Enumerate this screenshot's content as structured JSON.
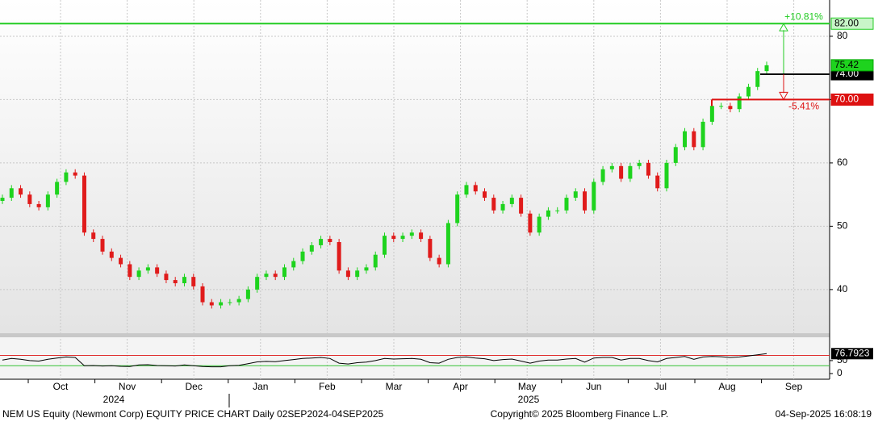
{
  "chart_data": {
    "type": "candlestick",
    "open": [
      54,
      54.5,
      56,
      55,
      53.5,
      53,
      55,
      57,
      58.5,
      58,
      49,
      48,
      46,
      45,
      44,
      42,
      43,
      43.5,
      42.5,
      41.5,
      41,
      42,
      40.5,
      38,
      37.5,
      38,
      38,
      38.5,
      40,
      42,
      42.5,
      42,
      43.5,
      44.5,
      46,
      47,
      48,
      47.5,
      43,
      42,
      43,
      43.5,
      45.5,
      48.5,
      48,
      48.5,
      49,
      48,
      45,
      44,
      50.5,
      55,
      56.5,
      55.5,
      54.5,
      52.5,
      53.5,
      54.5,
      52,
      49,
      51.5,
      52.5,
      52.5,
      54.5,
      55.5,
      52.5,
      57,
      59,
      59.5,
      57.5,
      59.5,
      60,
      58,
      56,
      60,
      62.5,
      65,
      62.5,
      66.5,
      69,
      69,
      68.5,
      70.5,
      72,
      74.5
    ],
    "high": [
      55,
      56.5,
      56.5,
      55.5,
      54,
      55.5,
      57.5,
      59,
      59,
      58.5,
      49.5,
      48.5,
      46.5,
      45.5,
      44.5,
      43.5,
      44,
      44,
      43,
      42,
      42.5,
      42.5,
      41,
      38.5,
      38.5,
      38.5,
      39,
      40.5,
      42.5,
      43,
      43,
      44,
      45,
      46.5,
      47.5,
      48.5,
      48.5,
      48,
      43.5,
      43.5,
      44,
      46,
      49,
      49,
      49,
      49.5,
      49.5,
      48.5,
      45.5,
      51,
      55.5,
      57,
      57,
      56,
      55,
      54,
      55,
      55,
      52.5,
      52,
      53,
      53,
      55,
      56,
      56,
      57.5,
      59.5,
      60,
      60,
      60,
      60.5,
      60.5,
      58.5,
      60.5,
      63,
      65.5,
      65.5,
      67,
      69.5,
      69.5,
      69.5,
      71,
      72.5,
      75,
      76
    ],
    "low": [
      53.5,
      54,
      54.5,
      53,
      52.5,
      52.5,
      54.5,
      56.5,
      57.5,
      48.5,
      47.5,
      45.5,
      44.5,
      43.5,
      41.5,
      41.5,
      42.5,
      42,
      41,
      40.5,
      40.5,
      40,
      37.5,
      37,
      37,
      37.5,
      37.5,
      38,
      39.5,
      41.5,
      41.5,
      41.5,
      43,
      44,
      45.5,
      46.5,
      47,
      42.5,
      41.5,
      41.5,
      42.5,
      43,
      45,
      47.5,
      47.5,
      48,
      47.5,
      44.5,
      43.5,
      43.5,
      50,
      54.5,
      55,
      54,
      52,
      52,
      53,
      51.5,
      48.5,
      48.5,
      51,
      52,
      52,
      54,
      52,
      52,
      56.5,
      58.5,
      57,
      57,
      59,
      57.5,
      55.5,
      55.5,
      59.5,
      62,
      62,
      62,
      66,
      68.5,
      68,
      68,
      70,
      71.5,
      74
    ],
    "close": [
      54.5,
      56,
      55,
      53.5,
      53,
      55,
      57,
      58.5,
      58,
      49,
      48,
      46,
      45,
      44,
      42,
      43,
      43.5,
      42.5,
      41.5,
      41,
      42,
      40.5,
      38,
      37.5,
      38,
      38,
      38.5,
      40,
      42,
      42.5,
      42,
      43.5,
      44.5,
      46,
      47,
      48,
      47.5,
      43,
      42,
      43,
      43.5,
      45.5,
      48.5,
      48,
      48.5,
      49,
      48,
      45,
      44,
      50.5,
      55,
      56.5,
      55.5,
      54.5,
      52.5,
      53.5,
      54.5,
      52,
      49,
      51.5,
      52.5,
      52.5,
      54.5,
      55.5,
      52.5,
      57,
      59,
      59.5,
      57.5,
      59.5,
      60,
      58,
      56,
      60,
      62.5,
      65,
      62.5,
      66.5,
      69,
      69,
      68.5,
      70.5,
      72,
      74.5,
      75.42
    ],
    "up_color": "#1ed31e",
    "down_color": "#e01b1b",
    "ylim": [
      33.1,
      85.73
    ],
    "yticks": [
      40,
      50,
      60,
      70,
      80
    ],
    "grid": true,
    "levels": [
      {
        "value": 82,
        "label": "82.00",
        "color": "#22cc22",
        "note": "+10.81%"
      },
      {
        "value": 74,
        "label": "74.00",
        "color": "#000000"
      },
      {
        "value": 70,
        "label": "70.00",
        "color": "#dd1111",
        "note": "-5.41%"
      }
    ],
    "months": [
      "Oct",
      "Nov",
      "Dec",
      "Jan",
      "Feb",
      "Mar",
      "Apr",
      "May",
      "Jun",
      "Jul",
      "Aug",
      "Sep"
    ],
    "years": [
      "2024",
      "2025"
    ],
    "rsi": {
      "type": "line",
      "color": "#000000",
      "values": [
        52,
        58,
        55,
        50,
        48,
        55,
        60,
        64,
        62,
        30,
        31,
        29,
        30,
        28,
        27,
        33,
        34,
        31,
        30,
        29,
        33,
        30,
        27,
        26,
        26,
        30,
        32,
        38,
        45,
        47,
        46,
        50,
        54,
        58,
        60,
        62,
        58,
        40,
        37,
        42,
        44,
        50,
        58,
        56,
        57,
        58,
        55,
        42,
        40,
        55,
        62,
        64,
        60,
        57,
        50,
        54,
        56,
        48,
        40,
        48,
        52,
        52,
        56,
        58,
        44,
        60,
        62,
        62,
        52,
        58,
        58,
        50,
        45,
        58,
        62,
        66,
        55,
        64,
        66,
        65,
        62,
        64,
        68,
        72,
        76.7923
      ],
      "ylim": [
        -22,
        140
      ],
      "yticks": [
        0,
        50
      ],
      "bands": [
        {
          "value": 70,
          "color": "#e03030"
        },
        {
          "value": 30,
          "color": "#30c030"
        }
      ]
    }
  },
  "footer": {
    "left": "NEM US Equity (Newmont Corp) EQUITY PRICE CHART  Daily 02SEP2024-04SEP2025",
    "center": "Copyright© 2025 Bloomberg Finance L.P.",
    "right": "04-Sep-2025 16:08:19"
  }
}
